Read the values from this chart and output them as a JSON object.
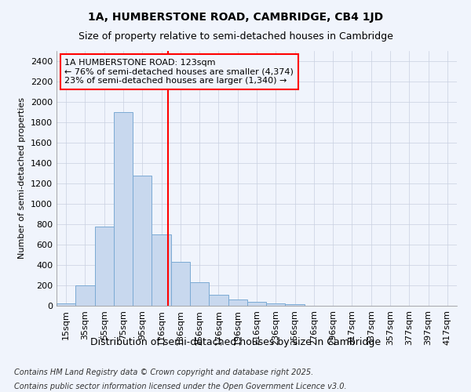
{
  "title": "1A, HUMBERSTONE ROAD, CAMBRIDGE, CB4 1JD",
  "subtitle": "Size of property relative to semi-detached houses in Cambridge",
  "xlabel": "Distribution of semi-detached houses by size in Cambridge",
  "ylabel": "Number of semi-detached properties",
  "categories": [
    "15sqm",
    "35sqm",
    "55sqm",
    "75sqm",
    "95sqm",
    "116sqm",
    "136sqm",
    "156sqm",
    "176sqm",
    "196sqm",
    "216sqm",
    "236sqm",
    "256sqm",
    "276sqm",
    "296sqm",
    "317sqm",
    "337sqm",
    "357sqm",
    "377sqm",
    "397sqm",
    "417sqm"
  ],
  "values": [
    22,
    200,
    775,
    1900,
    1275,
    700,
    430,
    230,
    105,
    65,
    40,
    25,
    15,
    0,
    0,
    0,
    0,
    0,
    0,
    0,
    0
  ],
  "bar_color": "#c8d8ee",
  "bar_edge_color": "#7baad4",
  "vline_color": "red",
  "annotation_title": "1A HUMBERSTONE ROAD: 123sqm",
  "annotation_line1": "← 76% of semi-detached houses are smaller (4,374)",
  "annotation_line2": "23% of semi-detached houses are larger (1,340) →",
  "annotation_box_color": "red",
  "ylim": [
    0,
    2500
  ],
  "yticks": [
    0,
    200,
    400,
    600,
    800,
    1000,
    1200,
    1400,
    1600,
    1800,
    2000,
    2200,
    2400
  ],
  "grid_color": "#c8d0e0",
  "background_color": "#f0f4fc",
  "plot_bg_color": "#f0f4fc",
  "footnote1": "Contains HM Land Registry data © Crown copyright and database right 2025.",
  "footnote2": "Contains public sector information licensed under the Open Government Licence v3.0.",
  "title_fontsize": 10,
  "subtitle_fontsize": 9,
  "xlabel_fontsize": 9,
  "ylabel_fontsize": 8,
  "tick_fontsize": 8,
  "annotation_fontsize": 8,
  "footnote_fontsize": 7
}
